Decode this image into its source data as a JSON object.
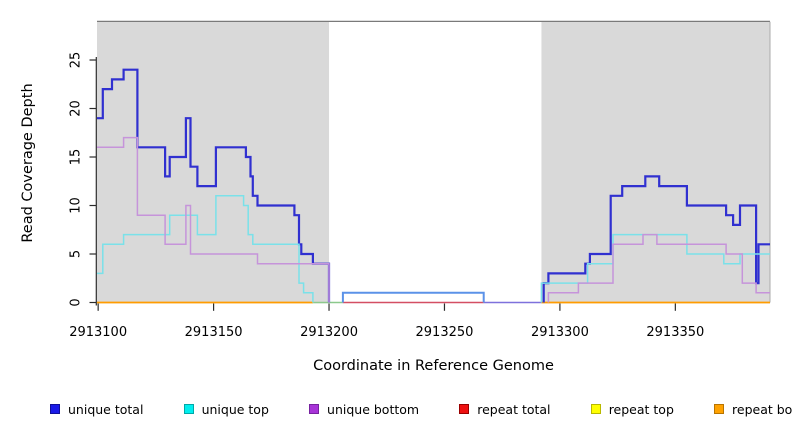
{
  "axes": {
    "x": {
      "label": "Coordinate in Reference Genome",
      "ticks": [
        2913100,
        2913150,
        2913200,
        2913250,
        2913300,
        2913350
      ]
    },
    "y": {
      "label": "Read Coverage Depth",
      "ticks": [
        0,
        5,
        10,
        15,
        20,
        25
      ]
    }
  },
  "chart_data": {
    "type": "line",
    "step_style": "post",
    "title": "",
    "xlabel": "Coordinate in Reference Genome",
    "ylabel": "Read Coverage Depth",
    "xlim": [
      2913099.5,
      2913391
    ],
    "ylim": [
      0,
      28.95
    ],
    "x_ticks": [
      2913100,
      2913150,
      2913200,
      2913250,
      2913300,
      2913350
    ],
    "y_ticks": [
      0,
      5,
      10,
      15,
      20,
      25
    ],
    "grid": false,
    "legend_position": "bottom",
    "shaded_regions": [
      {
        "name": "left-shaded-region",
        "from": 2913099.5,
        "to": 2913200,
        "color": "#d9d9d9"
      },
      {
        "name": "right-shaded-region",
        "from": 2913292,
        "to": 2913391,
        "color": "#d9d9d9"
      }
    ],
    "series": [
      {
        "name": "unique-total-left",
        "legend": "unique total",
        "color": "#3030d0",
        "width": 2.2,
        "points": [
          [
            2913099.5,
            19
          ],
          [
            2913102,
            22
          ],
          [
            2913106,
            23
          ],
          [
            2913111,
            24
          ],
          [
            2913117,
            16
          ],
          [
            2913129,
            13
          ],
          [
            2913131,
            15
          ],
          [
            2913138,
            19
          ],
          [
            2913140,
            14
          ],
          [
            2913143,
            12
          ],
          [
            2913151,
            16
          ],
          [
            2913164,
            15
          ],
          [
            2913166,
            13
          ],
          [
            2913167,
            11
          ],
          [
            2913169,
            10
          ],
          [
            2913185,
            9
          ],
          [
            2913187,
            6
          ],
          [
            2913188,
            5
          ],
          [
            2913193,
            4
          ],
          [
            2913200,
            0
          ]
        ],
        "end": 2913200
      },
      {
        "name": "unique-top-left",
        "legend": "unique top",
        "color": "#7ae1e9",
        "width": 1.5,
        "points": [
          [
            2913099.5,
            3
          ],
          [
            2913102,
            6
          ],
          [
            2913111,
            7
          ],
          [
            2913131,
            9
          ],
          [
            2913143,
            7
          ],
          [
            2913151,
            11
          ],
          [
            2913163,
            10
          ],
          [
            2913165,
            7
          ],
          [
            2913167,
            6
          ],
          [
            2913187,
            2
          ],
          [
            2913189,
            1
          ],
          [
            2913193,
            0
          ]
        ],
        "end": 2913193
      },
      {
        "name": "unique-bottom-left",
        "legend": "unique bottom",
        "color": "#c694da",
        "width": 1.5,
        "points": [
          [
            2913099.5,
            16
          ],
          [
            2913111,
            17
          ],
          [
            2913117,
            9
          ],
          [
            2913129,
            6
          ],
          [
            2913138,
            10
          ],
          [
            2913140,
            5
          ],
          [
            2913169,
            4
          ],
          [
            2913200,
            0
          ]
        ],
        "end": 2913200
      },
      {
        "name": "unique-total-gap",
        "legend": "unique total",
        "color": "#5b92e8",
        "width": 2,
        "points": [
          [
            2913206,
            0
          ],
          [
            2913206,
            1
          ],
          [
            2913267,
            0
          ]
        ],
        "end": 2913267
      },
      {
        "name": "unique-total-right",
        "legend": "unique total",
        "color": "#3030d0",
        "width": 2.2,
        "points": [
          [
            2913293,
            0
          ],
          [
            2913293,
            2
          ],
          [
            2913295,
            3
          ],
          [
            2913311,
            4
          ],
          [
            2913313,
            5
          ],
          [
            2913322,
            11
          ],
          [
            2913327,
            12
          ],
          [
            2913337,
            13
          ],
          [
            2913343,
            12
          ],
          [
            2913355,
            10
          ],
          [
            2913372,
            9
          ],
          [
            2913375,
            8
          ],
          [
            2913378,
            10
          ],
          [
            2913385,
            2
          ],
          [
            2913386,
            6
          ]
        ],
        "end": 2913391
      },
      {
        "name": "unique-top-right",
        "legend": "unique top",
        "color": "#7ae1e9",
        "width": 1.5,
        "points": [
          [
            2913292,
            0
          ],
          [
            2913292,
            2
          ],
          [
            2913312,
            4
          ],
          [
            2913323,
            7
          ],
          [
            2913355,
            5
          ],
          [
            2913371,
            4
          ],
          [
            2913378,
            5
          ]
        ],
        "end": 2913391
      },
      {
        "name": "unique-bottom-right",
        "legend": "unique bottom",
        "color": "#c694da",
        "width": 1.5,
        "points": [
          [
            2913295,
            0
          ],
          [
            2913295,
            1
          ],
          [
            2913308,
            2
          ],
          [
            2913323,
            6
          ],
          [
            2913336,
            7
          ],
          [
            2913342,
            6
          ],
          [
            2913372,
            5
          ],
          [
            2913379,
            2
          ],
          [
            2913385,
            1
          ]
        ],
        "end": 2913391
      }
    ],
    "zero_line_segments": [
      {
        "name": "repeat-bottom-zero-left",
        "from": 2913099.5,
        "to": 2913193,
        "color": "#ff9c00",
        "width": 1.8
      },
      {
        "name": "zero-overlap-green",
        "from": 2913193,
        "to": 2913206,
        "color": "#8cc98c",
        "width": 1.5
      },
      {
        "name": "repeat-total-zero-mid",
        "from": 2913206,
        "to": 2913267,
        "color": "#d44f63",
        "width": 1.5
      },
      {
        "name": "unique-zero-violet",
        "from": 2913267,
        "to": 2913292,
        "color": "#7e71dc",
        "width": 1.5
      },
      {
        "name": "repeat-bottom-zero-right",
        "from": 2913292,
        "to": 2913391,
        "color": "#ff9c00",
        "width": 1.8
      }
    ]
  },
  "legend": {
    "items": [
      {
        "label": "unique total",
        "fill": "#1a1ae8",
        "border": "#101099"
      },
      {
        "label": "unique top",
        "fill": "#00eeee",
        "border": "#00a8a8"
      },
      {
        "label": "unique bottom",
        "fill": "#a834d8",
        "border": "#7722a0"
      },
      {
        "label": "repeat total",
        "fill": "#ee1111",
        "border": "#990000"
      },
      {
        "label": "repeat top",
        "fill": "#ffff00",
        "border": "#b8b800"
      },
      {
        "label": "repeat bottom",
        "fill": "#ffa200",
        "border": "#b87400"
      }
    ]
  },
  "style": {
    "plot_bg": "#ffffff",
    "shade_color": "#d9d9d9",
    "top_border_color": "#7a7a7a",
    "right_border_color": "#ababab",
    "axis_color": "#2b2b2b",
    "text_color": "#000000"
  }
}
